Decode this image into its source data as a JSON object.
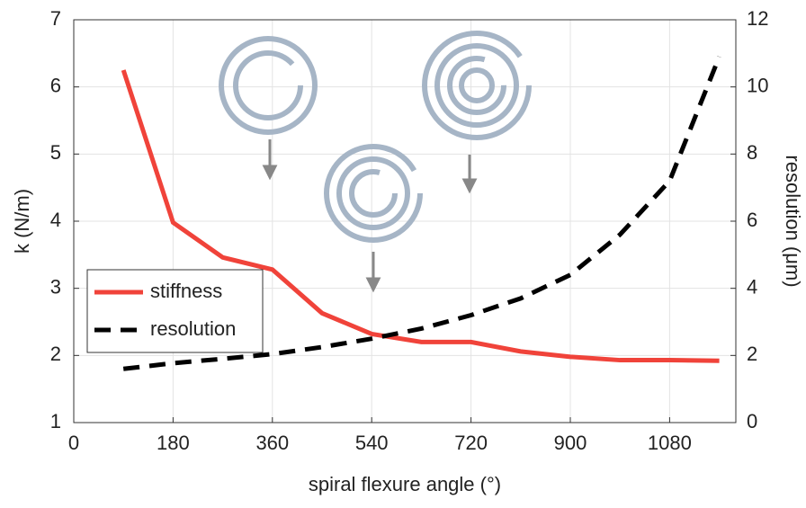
{
  "chart_data": {
    "type": "line",
    "xlabel": "spiral flexure angle (°)",
    "ylabel": "k (N/m)",
    "y2label": "resolution (μm)",
    "x": [
      90,
      180,
      270,
      360,
      450,
      540,
      630,
      720,
      810,
      900,
      990,
      1080,
      1170
    ],
    "series": [
      {
        "name": "stiffness",
        "color": "#f0433a",
        "linestyle": "solid",
        "values": [
          6.25,
          3.98,
          3.46,
          3.28,
          2.63,
          2.32,
          2.2,
          2.2,
          2.06,
          1.98,
          1.93,
          1.93,
          1.92
        ]
      },
      {
        "name": "resolution",
        "color": "#000000",
        "linestyle": "dashed",
        "axis": "y2",
        "values": [
          1.6,
          1.77,
          1.9,
          2.04,
          2.25,
          2.5,
          2.8,
          3.2,
          3.7,
          4.4,
          5.6,
          7.2,
          10.9
        ]
      }
    ],
    "xlim": [
      0,
      1200
    ],
    "xticks": [
      0,
      180,
      360,
      540,
      720,
      900,
      1080
    ],
    "ylim": [
      1,
      7
    ],
    "yticks": [
      1,
      2,
      3,
      4,
      5,
      6,
      7
    ],
    "y2lim": [
      0,
      12
    ],
    "y2ticks": [
      0,
      2,
      4,
      6,
      8,
      10,
      12
    ],
    "grid": true,
    "legend": "lower left"
  }
}
